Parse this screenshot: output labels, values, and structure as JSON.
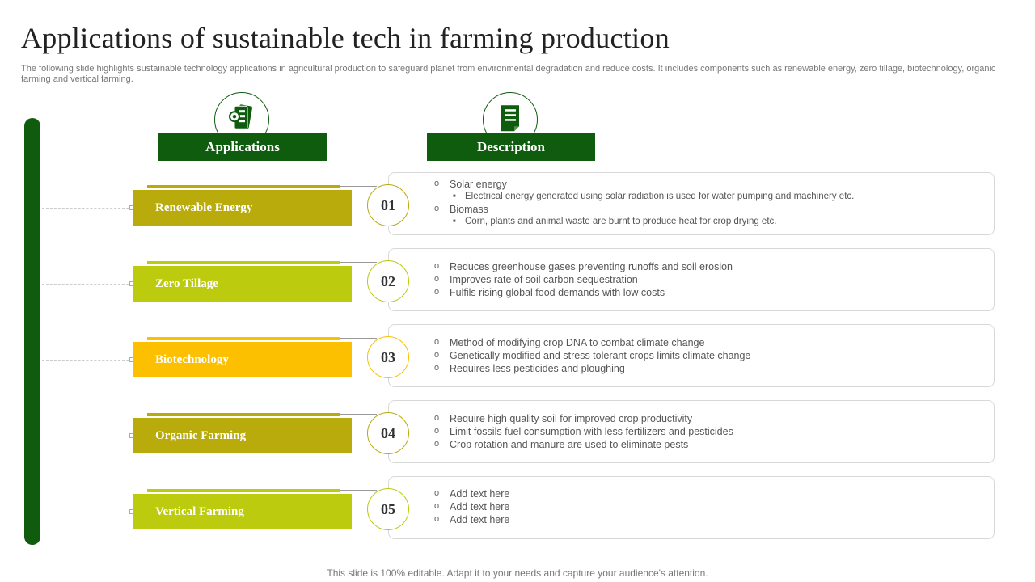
{
  "title": "Applications of sustainable tech in farming production",
  "subtitle": "The following slide highlights sustainable technology applications in agricultural production to safeguard planet from environmental degradation and reduce costs. It includes components such as renewable energy, zero tillage, biotechnology, organic farming and vertical farming.",
  "headers": {
    "applications": "Applications",
    "description": "Description"
  },
  "icons": {
    "applications": "mobile-apps-gear-icon",
    "description": "document-icon"
  },
  "colors": {
    "dark_green": "#0f5c0f",
    "olive": "#b8ab0b",
    "lime": "#bccb0d",
    "amber": "#fcc000"
  },
  "rows": [
    {
      "label": "Renewable Energy",
      "number": "01",
      "color": "#b8ab0b",
      "bullets": [
        {
          "text": "Solar energy",
          "sub": [
            "Electrical energy generated using solar radiation is used for water pumping and machinery etc."
          ]
        },
        {
          "text": "Biomass",
          "sub": [
            "Corn, plants and animal waste are burnt to produce heat for crop drying etc."
          ]
        }
      ]
    },
    {
      "label": "Zero Tillage",
      "number": "02",
      "color": "#bccb0d",
      "bullets": [
        {
          "text": "Reduces greenhouse gases preventing  runoffs and soil erosion",
          "sub": []
        },
        {
          "text": "Improves rate of soil carbon sequestration",
          "sub": []
        },
        {
          "text": "Fulfils rising global food demands with low costs",
          "sub": []
        }
      ]
    },
    {
      "label": "Biotechnology",
      "number": "03",
      "color": "#fcc000",
      "bullets": [
        {
          "text": "Method of modifying crop DNA to combat climate change",
          "sub": []
        },
        {
          "text": "Genetically modified and stress tolerant crops limits climate change",
          "sub": []
        },
        {
          "text": "Requires less pesticides and ploughing",
          "sub": []
        }
      ]
    },
    {
      "label": "Organic  Farming",
      "number": "04",
      "color": "#b8ab0b",
      "bullets": [
        {
          "text": "Require high quality soil for improved  crop productivity",
          "sub": []
        },
        {
          "text": "Limit fossils fuel consumption with less fertilizers and pesticides",
          "sub": []
        },
        {
          "text": "Crop rotation and manure are used to eliminate pests",
          "sub": []
        }
      ]
    },
    {
      "label": "Vertical Farming",
      "number": "05",
      "color": "#bccb0d",
      "bullets": [
        {
          "text": "Add text here",
          "sub": []
        },
        {
          "text": "Add text here",
          "sub": []
        },
        {
          "text": "Add text here",
          "sub": []
        }
      ]
    }
  ],
  "footer": "This slide is 100% editable. Adapt it to your needs and capture your audience's attention."
}
